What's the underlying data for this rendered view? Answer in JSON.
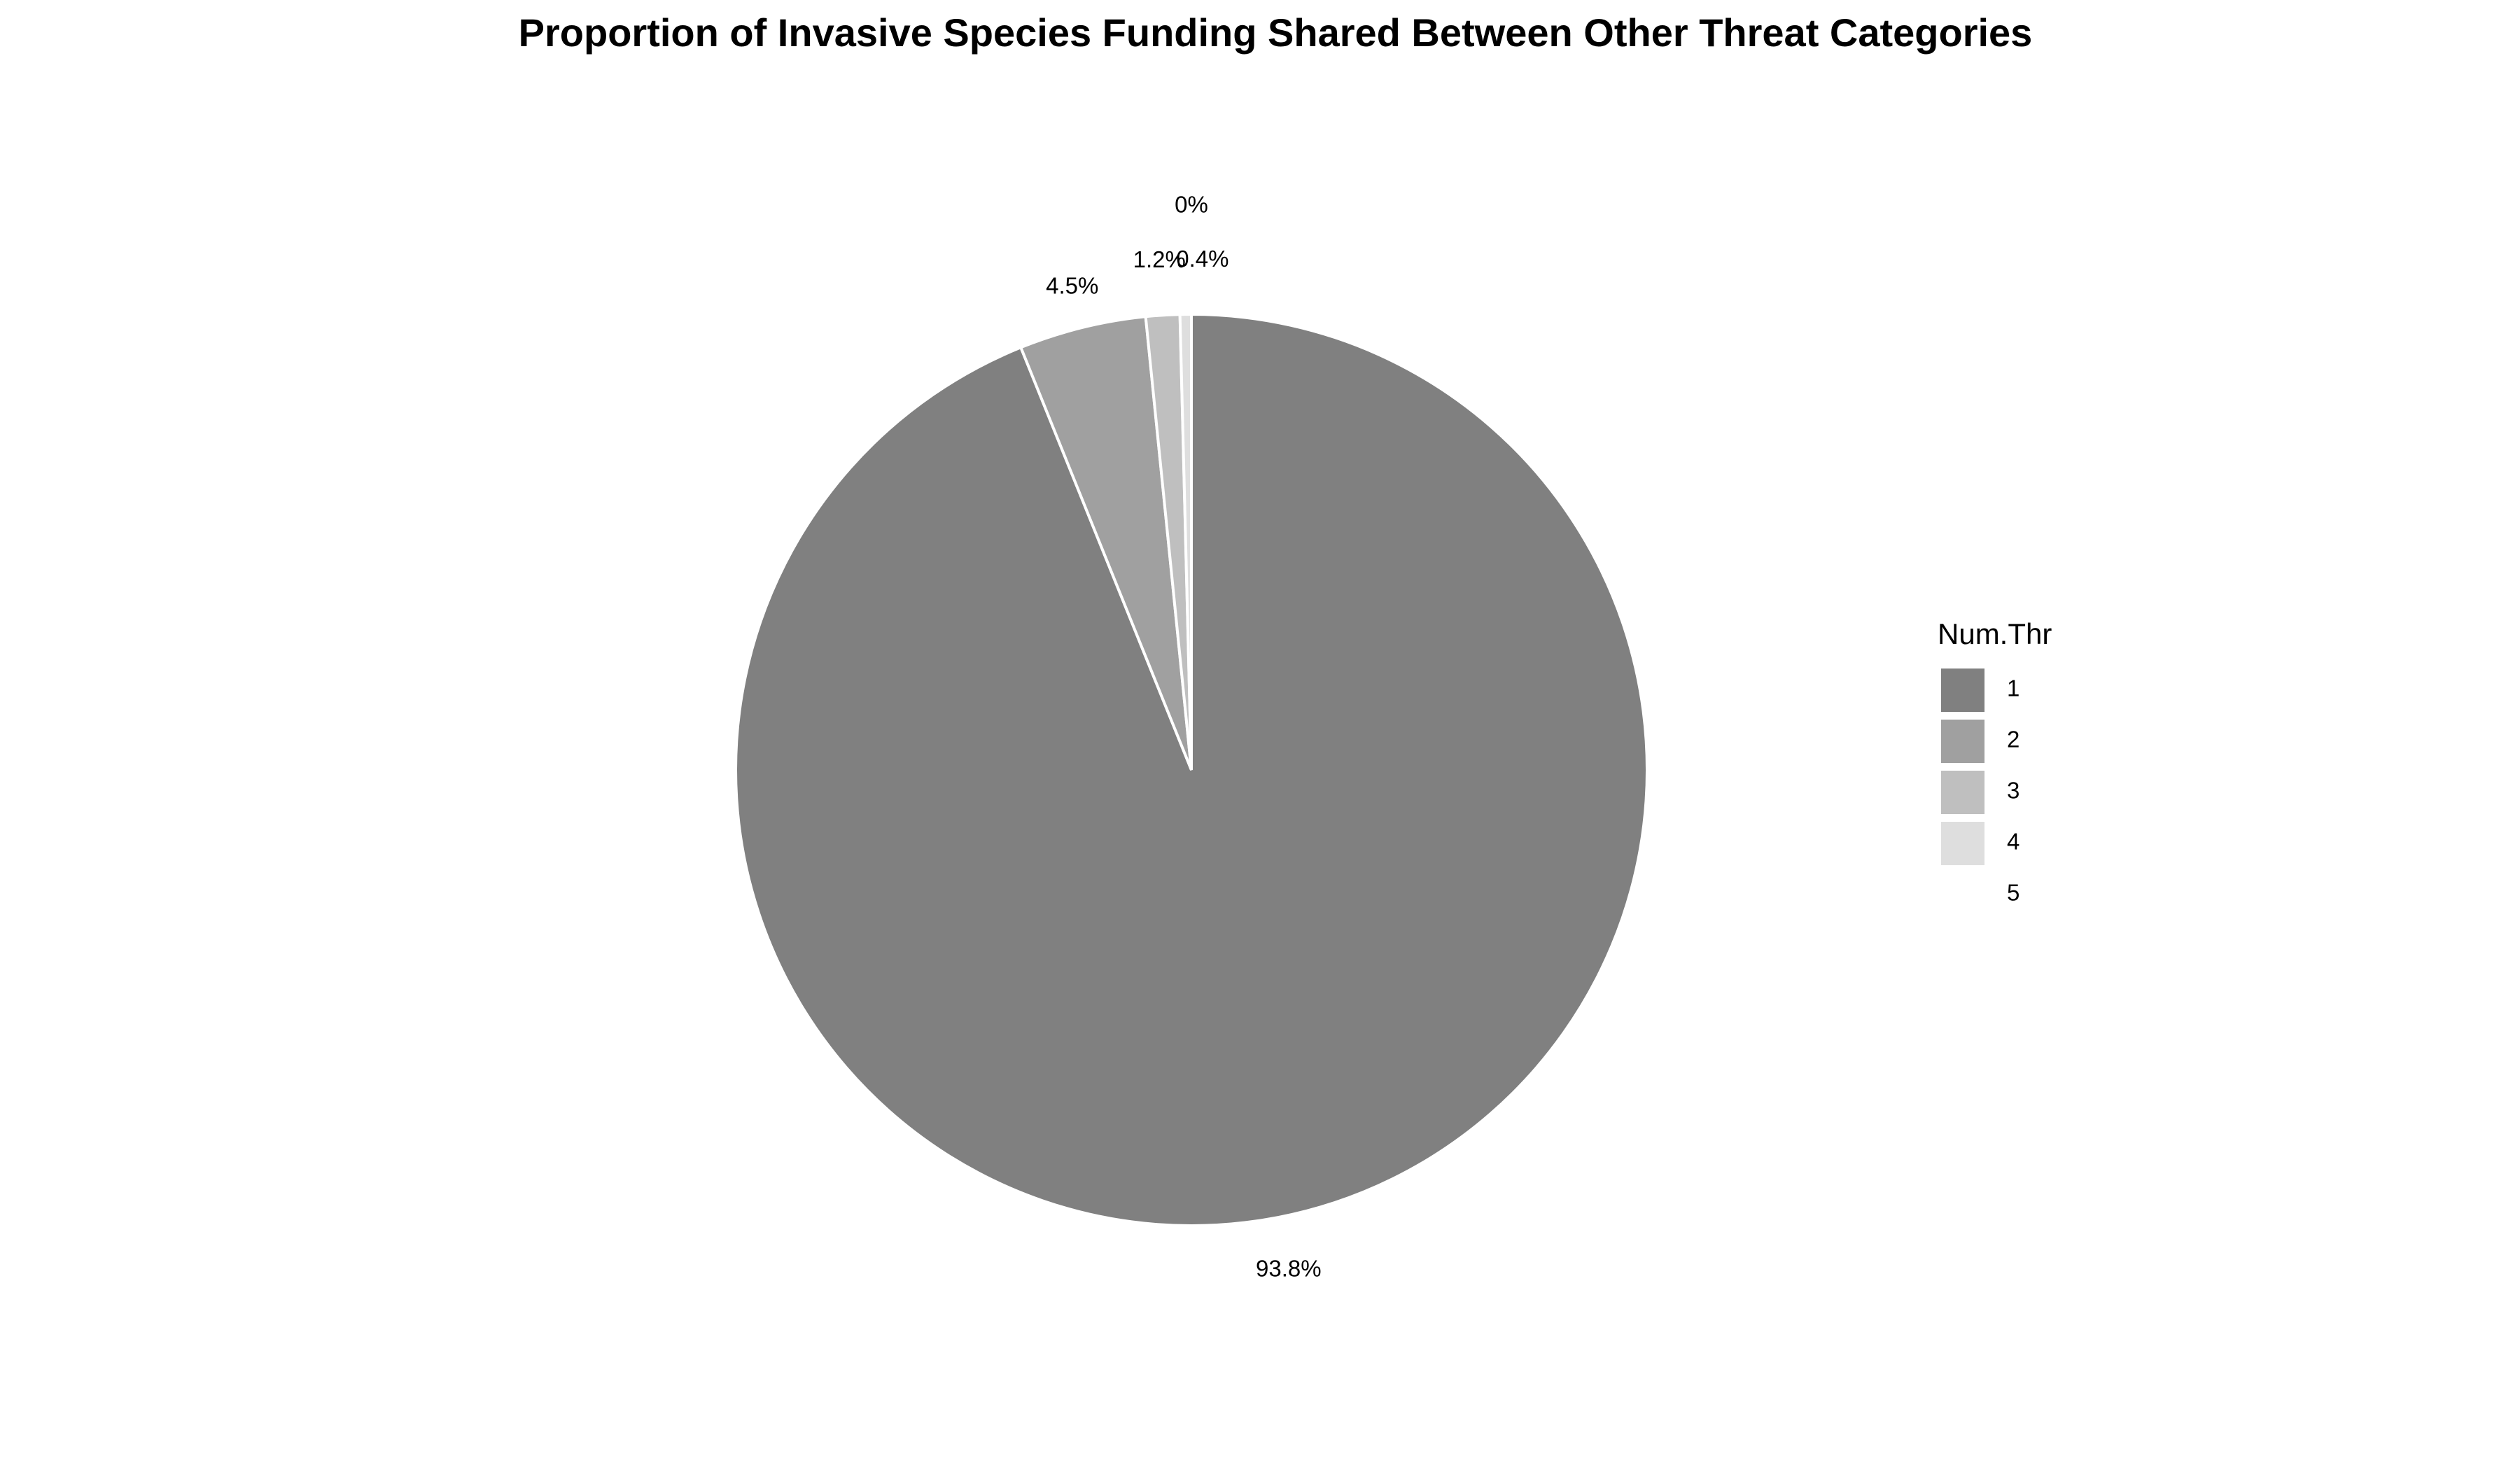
{
  "chart_data": {
    "type": "pie",
    "title": "Proportion of Invasive Species Funding Shared Between Other Threat Categories",
    "legend_title": "Num.Thr",
    "legend_position": "right",
    "start": "top",
    "direction": "clockwise",
    "slices": [
      {
        "category": "1",
        "value": 93.8,
        "label": "93.8%",
        "color": "#808080"
      },
      {
        "category": "2",
        "value": 4.5,
        "label": "4.5%",
        "color": "#a0a0a0"
      },
      {
        "category": "3",
        "value": 1.2,
        "label": "1.2%",
        "color": "#bfbfbf"
      },
      {
        "category": "4",
        "value": 0.4,
        "label": "0.4%",
        "color": "#dedede"
      },
      {
        "category": "5",
        "value": 0.0,
        "label": "0%",
        "color": "#ffffff"
      }
    ],
    "slice_border_color": "#ffffff"
  }
}
